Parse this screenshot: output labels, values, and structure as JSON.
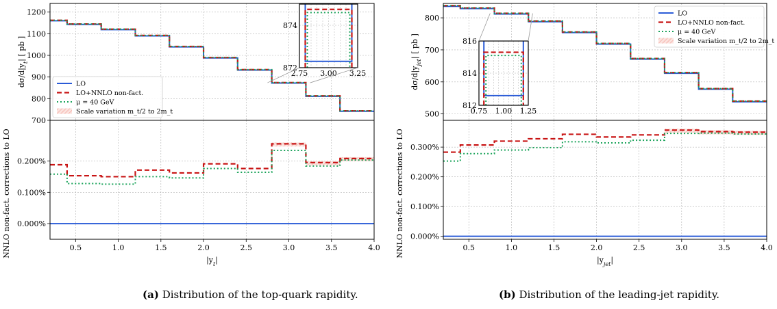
{
  "captions": [
    {
      "label": "(a)",
      "text": " Distribution of the top-quark rapidity."
    },
    {
      "label": "(b)",
      "text": " Distribution of the leading-jet rapidity."
    }
  ],
  "colors": {
    "lo": "#2a5bd7",
    "nnlo": "#c81414",
    "mu": "#1aa35a",
    "band": "#f3b8b0",
    "grid": "#b0b0b0"
  },
  "chart_data": [
    {
      "type": "line",
      "step": true,
      "panel": "a",
      "x_edges": [
        0.2,
        0.4,
        0.8,
        1.2,
        1.6,
        2.0,
        2.4,
        2.8,
        3.2,
        3.6,
        4.0
      ],
      "xlim": [
        0.2,
        4.0
      ],
      "xticks": [
        "0.5",
        "1.0",
        "1.5",
        "2.0",
        "2.5",
        "3.0",
        "3.5",
        "4.0"
      ],
      "xtick_values": [
        0.5,
        1.0,
        1.5,
        2.0,
        2.5,
        3.0,
        3.5,
        4.0
      ],
      "xlabel": "|y_t|",
      "top": {
        "ylabel": "dσ/d|y_t| [ pb ]",
        "ylim": [
          700,
          1240
        ],
        "yticks": [
          "700",
          "800",
          "900",
          "1000",
          "1100",
          "1200"
        ],
        "ytick_values": [
          700,
          800,
          900,
          1000,
          1100,
          1200
        ],
        "series": [
          {
            "name": "LO",
            "values": [
              1160,
              1143,
              1119,
              1090,
              1039,
              988,
              932,
              872,
              811,
              742
            ]
          },
          {
            "name": "LO+NNLO non-fact.",
            "values": [
              1162,
              1145,
              1121,
              1092,
              1041,
              990,
              934,
              874,
              813,
              744
            ]
          },
          {
            "name": "μ = 40 GeV",
            "values": [
              1162,
              1145,
              1121,
              1092,
              1041,
              990,
              934,
              874,
              813,
              744
            ]
          }
        ],
        "band_name": "Scale variation m_t/2 to 2m_t",
        "inset": {
          "xlim": [
            2.75,
            3.25
          ],
          "ylim": [
            872,
            875
          ],
          "xticks": [
            "2.75",
            "3.00",
            "3.25"
          ],
          "xtick_values": [
            2.75,
            3.0,
            3.25
          ],
          "yticks": [
            "872",
            "874"
          ],
          "ytick_values": [
            872,
            874
          ],
          "edges": [
            2.8,
            3.2
          ],
          "lo": 872.3,
          "nnlo": 874.75,
          "mu": 874.6
        }
      },
      "bottom": {
        "ylabel": "NNLO non-fact. corrections to LO",
        "ylim": [
          -0.0005,
          0.0033
        ],
        "yticks": [
          "0.000%",
          "0.100%",
          "0.200%"
        ],
        "ytick_values": [
          0.0,
          0.001,
          0.002
        ],
        "series": [
          {
            "name": "LO",
            "values": [
              0,
              0,
              0,
              0,
              0,
              0,
              0,
              0,
              0,
              0
            ]
          },
          {
            "name": "LO+NNLO non-fact.",
            "values": [
              0.00188,
              0.00153,
              0.0015,
              0.00171,
              0.00162,
              0.00191,
              0.00176,
              0.00255,
              0.00195,
              0.00208
            ]
          },
          {
            "name": "μ = 40 GeV",
            "values": [
              0.00158,
              0.00128,
              0.00126,
              0.0015,
              0.00146,
              0.00176,
              0.00164,
              0.00234,
              0.00184,
              0.00203
            ]
          }
        ]
      }
    },
    {
      "type": "line",
      "step": true,
      "panel": "b",
      "x_edges": [
        0.2,
        0.4,
        0.8,
        1.2,
        1.6,
        2.0,
        2.4,
        2.8,
        3.2,
        3.6,
        4.0
      ],
      "xlim": [
        0.2,
        4.0
      ],
      "xticks": [
        "0.5",
        "1.0",
        "1.5",
        "2.0",
        "2.5",
        "3.0",
        "3.5",
        "4.0"
      ],
      "xtick_values": [
        0.5,
        1.0,
        1.5,
        2.0,
        2.5,
        3.0,
        3.5,
        4.0
      ],
      "xlabel": "|y_jet|",
      "top": {
        "ylabel": "dσ/d|y_jet| [ pb ]",
        "ylim": [
          480,
          845
        ],
        "yticks": [
          "500",
          "600",
          "700",
          "800"
        ],
        "ytick_values": [
          500,
          600,
          700,
          800
        ],
        "series": [
          {
            "name": "LO",
            "values": [
              836,
              829,
              812,
              788,
              754,
              718,
              671,
              627,
              577,
              538
            ]
          },
          {
            "name": "LO+NNLO non-fact.",
            "values": [
              838,
              831,
              814,
              790,
              756,
              720,
              673,
              629,
              579,
              540
            ]
          },
          {
            "name": "μ = 40 GeV",
            "values": [
              838,
              831,
              814,
              790,
              756,
              720,
              673,
              629,
              579,
              540
            ]
          }
        ],
        "band_name": "Scale variation m_t/2 to 2m_t",
        "inset": {
          "xlim": [
            0.75,
            1.25
          ],
          "ylim": [
            812,
            816
          ],
          "xticks": [
            "0.75",
            "1.00",
            "1.25"
          ],
          "xtick_values": [
            0.75,
            1.0,
            1.25
          ],
          "yticks": [
            "812",
            "814",
            "816"
          ],
          "ytick_values": [
            812,
            814,
            816
          ],
          "edges": [
            0.8,
            1.2
          ],
          "lo": 812.6,
          "nnlo": 815.3,
          "mu": 815.1
        }
      },
      "bottom": {
        "ylabel": "NNLO non-fact. corrections to LO",
        "ylim": [
          -0.0001,
          0.0039
        ],
        "yticks": [
          "0.000%",
          "0.100%",
          "0.200%",
          "0.300%"
        ],
        "ytick_values": [
          0.0,
          0.001,
          0.002,
          0.003
        ],
        "series": [
          {
            "name": "LO",
            "values": [
              0,
              0,
              0,
              0,
              0,
              0,
              0,
              0,
              0,
              0
            ]
          },
          {
            "name": "LO+NNLO non-fact.",
            "values": [
              0.00283,
              0.00307,
              0.0032,
              0.00328,
              0.00343,
              0.00334,
              0.00341,
              0.00357,
              0.00352,
              0.0035
            ]
          },
          {
            "name": "μ = 40 GeV",
            "values": [
              0.00253,
              0.00278,
              0.0029,
              0.00298,
              0.00318,
              0.00314,
              0.00323,
              0.00346,
              0.00347,
              0.00344
            ]
          }
        ]
      }
    }
  ]
}
